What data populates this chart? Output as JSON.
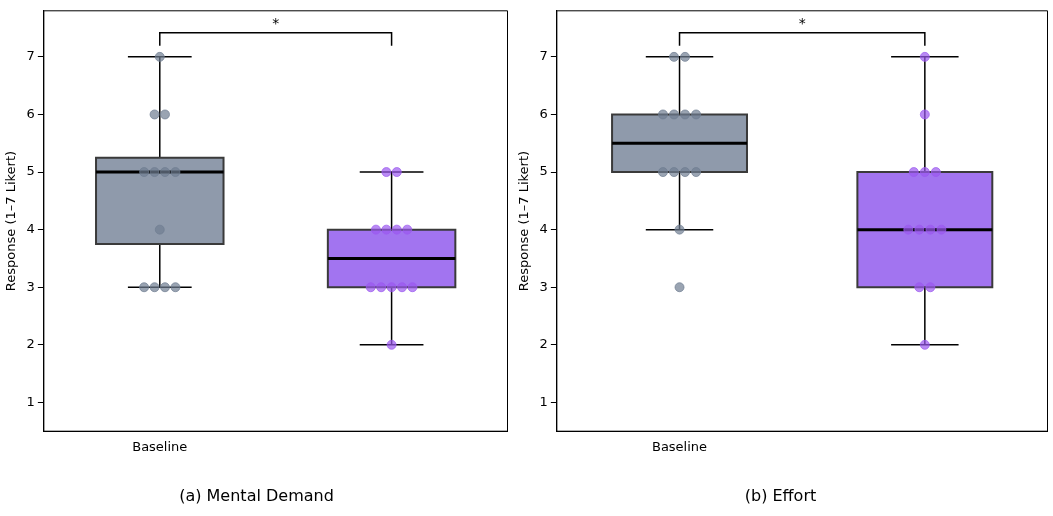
{
  "chart_data": [
    {
      "type": "box",
      "title": "(a) Mental Demand",
      "ylabel": "Response (1–7 Likert)",
      "categories": [
        "Baseline",
        null
      ],
      "ylim": [
        0.5,
        7.8
      ],
      "yticks": [
        1,
        2,
        3,
        4,
        5,
        6,
        7
      ],
      "grid": false,
      "legend": false,
      "annotations": [
        "*"
      ],
      "series": [
        {
          "colors": [
            "#8f9aab",
            "#a274f0"
          ],
          "boxes": [
            {
              "low": 3,
              "q1": 3.75,
              "median": 5,
              "q3": 5.25,
              "high": 7
            },
            {
              "low": 2,
              "q1": 3,
              "median": 3.5,
              "q3": 4,
              "high": 5
            }
          ]
        },
        {
          "type": "scatter",
          "color": "#6f7d91",
          "x": [
            "Baseline",
            "Baseline",
            "Baseline",
            "Baseline",
            "Baseline",
            "Baseline",
            "Baseline",
            "Baseline",
            "Baseline",
            "Baseline",
            "Baseline",
            "Baseline"
          ],
          "values": [
            7,
            6,
            6,
            5,
            5,
            5,
            5,
            4,
            3,
            3,
            3,
            3
          ]
        },
        {
          "type": "scatter",
          "color": "#9b59f0",
          "x": [
            null,
            null,
            null,
            null,
            null,
            null,
            null,
            null,
            null,
            null,
            null,
            null
          ],
          "values": [
            5,
            5,
            4,
            4,
            4,
            4,
            3,
            3,
            3,
            3,
            3,
            2
          ]
        }
      ]
    },
    {
      "type": "box",
      "title": "(b) Effort",
      "ylabel": "Response (1–7 Likert)",
      "categories": [
        "Baseline",
        null
      ],
      "ylim": [
        0.5,
        7.8
      ],
      "yticks": [
        1,
        2,
        3,
        4,
        5,
        6,
        7
      ],
      "grid": false,
      "legend": false,
      "annotations": [
        "*"
      ],
      "series": [
        {
          "colors": [
            "#8f9aab",
            "#a274f0"
          ],
          "boxes": [
            {
              "low": 4,
              "q1": 5,
              "median": 5.5,
              "q3": 6,
              "high": 7
            },
            {
              "low": 2,
              "q1": 3,
              "median": 4,
              "q3": 5,
              "high": 7
            }
          ]
        },
        {
          "type": "scatter",
          "color": "#6f7d91",
          "x": [
            "Baseline",
            "Baseline",
            "Baseline",
            "Baseline",
            "Baseline",
            "Baseline",
            "Baseline",
            "Baseline",
            "Baseline",
            "Baseline",
            "Baseline",
            "Baseline"
          ],
          "values": [
            7,
            7,
            6,
            6,
            6,
            6,
            5,
            5,
            5,
            5,
            4,
            3
          ]
        },
        {
          "type": "scatter",
          "color": "#9b59f0",
          "x": [
            null,
            null,
            null,
            null,
            null,
            null,
            null,
            null,
            null,
            null,
            null,
            null
          ],
          "values": [
            7,
            6,
            5,
            5,
            5,
            4,
            4,
            4,
            4,
            3,
            3,
            2
          ]
        }
      ]
    }
  ]
}
